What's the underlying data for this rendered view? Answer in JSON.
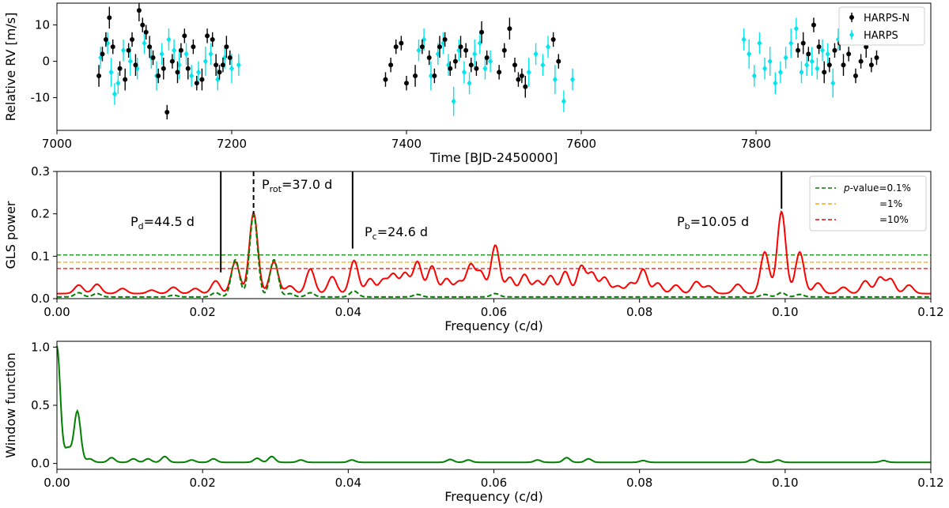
{
  "chart_data": [
    {
      "type": "scatter",
      "xlabel": "Time [BJD-2450000]",
      "ylabel": "Relative RV [m/s]",
      "xlim": [
        7000,
        8000
      ],
      "ylim": [
        -19,
        16
      ],
      "xticks": [
        7000,
        7200,
        7400,
        7600,
        7800
      ],
      "yticks": [
        10,
        0,
        -10
      ],
      "legend_position": "top-right",
      "series": [
        {
          "name": "HARPS-N",
          "color": "#000000",
          "marker": "circle",
          "error_bars": true,
          "x": [
            7048,
            7052,
            7056,
            7060,
            7064,
            7072,
            7078,
            7082,
            7086,
            7090,
            7094,
            7098,
            7102,
            7106,
            7110,
            7116,
            7122,
            7126,
            7132,
            7138,
            7142,
            7146,
            7150,
            7156,
            7160,
            7166,
            7172,
            7178,
            7182,
            7186,
            7190,
            7194,
            7198,
            7376,
            7382,
            7388,
            7394,
            7400,
            7410,
            7418,
            7426,
            7432,
            7438,
            7444,
            7450,
            7456,
            7462,
            7468,
            7474,
            7480,
            7486,
            7492,
            7506,
            7512,
            7518,
            7524,
            7528,
            7532,
            7536,
            7568,
            7574,
            7848,
            7854,
            7860,
            7866,
            7872,
            7878,
            7884,
            7890,
            7896,
            7900,
            7906,
            7914,
            7920,
            7926,
            7932,
            7938
          ],
          "y": [
            -4,
            2,
            6,
            12,
            4,
            -2,
            -5,
            3,
            6,
            -1,
            14,
            10,
            8,
            4,
            1,
            -4,
            -2,
            -14,
            0,
            -3,
            3,
            7,
            -2,
            4,
            -6,
            -5,
            7,
            6,
            -1,
            -3,
            -1,
            4,
            1,
            -5,
            -1,
            4,
            5,
            -6,
            -4,
            4,
            1,
            -4,
            4,
            6,
            -2,
            0,
            4,
            3,
            -1,
            -2,
            8,
            1,
            -3,
            3,
            9,
            -1,
            -5,
            -4,
            -7,
            6,
            0,
            3,
            5,
            2,
            10,
            4,
            -3,
            -1,
            3,
            5,
            -1,
            2,
            -4,
            0,
            4,
            -1,
            1
          ],
          "err": [
            3,
            2,
            2,
            3,
            2,
            2,
            3,
            2,
            2,
            3,
            3,
            2,
            2,
            3,
            2,
            2,
            3,
            2,
            2,
            3,
            2,
            2,
            3,
            2,
            2,
            3,
            2,
            2,
            3,
            2,
            2,
            3,
            2,
            2,
            2,
            2,
            2,
            2,
            3,
            2,
            2,
            2,
            3,
            2,
            2,
            2,
            3,
            2,
            2,
            2,
            3,
            2,
            2,
            2,
            3,
            2,
            2,
            2,
            3,
            2,
            2,
            2,
            3,
            2,
            2,
            2,
            3,
            2,
            2,
            2,
            3,
            2,
            2,
            2,
            3,
            2,
            2
          ]
        },
        {
          "name": "HARPS",
          "color": "#00e5ee",
          "marker": "diamond",
          "error_bars": true,
          "x": [
            7050,
            7058,
            7062,
            7066,
            7070,
            7076,
            7084,
            7092,
            7100,
            7108,
            7114,
            7120,
            7128,
            7134,
            7140,
            7148,
            7154,
            7162,
            7170,
            7176,
            7184,
            7192,
            7200,
            7208,
            7414,
            7420,
            7428,
            7436,
            7442,
            7448,
            7454,
            7460,
            7466,
            7472,
            7478,
            7484,
            7490,
            7496,
            7540,
            7548,
            7556,
            7562,
            7570,
            7580,
            7590,
            7786,
            7792,
            7798,
            7804,
            7810,
            7816,
            7822,
            7828,
            7834,
            7840,
            7846,
            7852,
            7858,
            7864,
            7870,
            7876,
            7882,
            7888,
            7894
          ],
          "y": [
            1,
            5,
            -3,
            -9,
            -6,
            3,
            0,
            -2,
            5,
            1,
            -4,
            2,
            6,
            3,
            -1,
            2,
            -4,
            -3,
            0,
            2,
            -5,
            1,
            -2,
            -1,
            3,
            6,
            -4,
            2,
            5,
            -1,
            -11,
            3,
            -3,
            -6,
            2,
            5,
            -2,
            0,
            -3,
            2,
            -1,
            4,
            -5,
            -11,
            -5,
            6,
            2,
            -4,
            5,
            -2,
            0,
            -6,
            -3,
            1,
            5,
            9,
            -3,
            -1,
            0,
            -2,
            3,
            2,
            -6,
            6
          ],
          "err": [
            3,
            3,
            4,
            3,
            3,
            3,
            4,
            3,
            3,
            3,
            4,
            3,
            3,
            3,
            4,
            3,
            3,
            3,
            4,
            3,
            3,
            3,
            4,
            3,
            3,
            3,
            4,
            3,
            3,
            3,
            4,
            3,
            3,
            3,
            4,
            3,
            3,
            3,
            4,
            3,
            3,
            3,
            4,
            3,
            3,
            3,
            4,
            3,
            3,
            3,
            4,
            3,
            3,
            3,
            4,
            3,
            3,
            3,
            4,
            3,
            3,
            3,
            4,
            3
          ]
        }
      ]
    },
    {
      "type": "line",
      "xlabel": "Frequency (c/d)",
      "ylabel": "GLS power",
      "xlim": [
        0,
        0.12
      ],
      "ylim": [
        0,
        0.3
      ],
      "xticks": [
        0.0,
        0.02,
        0.04,
        0.06,
        0.08,
        0.1,
        0.12
      ],
      "xtick_labels": [
        "0.00",
        "0.02",
        "0.04",
        "0.06",
        "0.08",
        "0.10",
        "0.12"
      ],
      "yticks": [
        0.0,
        0.1,
        0.2,
        0.3
      ],
      "ytick_labels": [
        "0.0",
        "0.1",
        "0.2",
        "0.3"
      ],
      "legend_position": "top-right",
      "fap_levels": [
        {
          "label_prefix": "p",
          "label": "-value=0.1%",
          "value": 0.103,
          "color": "#008000"
        },
        {
          "label_prefix": "",
          "label": "=1%",
          "value": 0.086,
          "color": "#ffa500"
        },
        {
          "label_prefix": "",
          "label": "=10%",
          "value": 0.071,
          "color": "#ff0000"
        }
      ],
      "annotations": [
        {
          "sym": "P",
          "sub": "d",
          "val": "=44.5 d",
          "freq": 0.0225,
          "line_top": 0.3,
          "line_bottom": 0.062,
          "style": "solid"
        },
        {
          "sym": "P",
          "sub": "rot",
          "val": "=37.0 d",
          "freq": 0.027,
          "line_top": 0.3,
          "line_bottom": 0.2,
          "style": "dashed"
        },
        {
          "sym": "P",
          "sub": "c",
          "val": "=24.6 d",
          "freq": 0.0406,
          "line_top": 0.3,
          "line_bottom": 0.118,
          "style": "solid"
        },
        {
          "sym": "P",
          "sub": "b",
          "val": "=10.05 d",
          "freq": 0.0995,
          "line_top": 0.3,
          "line_bottom": 0.212,
          "style": "solid"
        }
      ],
      "series": [
        {
          "name": "",
          "color": "#ff0000",
          "style": "solid",
          "base": 0.012,
          "peaks": [
            [
              0.003,
              0.02
            ],
            [
              0.0055,
              0.022
            ],
            [
              0.009,
              0.012
            ],
            [
              0.013,
              0.008
            ],
            [
              0.016,
              0.015
            ],
            [
              0.019,
              0.012
            ],
            [
              0.0218,
              0.03
            ],
            [
              0.0245,
              0.075
            ],
            [
              0.027,
              0.19
            ],
            [
              0.0298,
              0.075
            ],
            [
              0.032,
              0.018
            ],
            [
              0.0348,
              0.058
            ],
            [
              0.0378,
              0.04
            ],
            [
              0.0408,
              0.078
            ],
            [
              0.043,
              0.035
            ],
            [
              0.0448,
              0.032
            ],
            [
              0.0462,
              0.045
            ],
            [
              0.0478,
              0.048
            ],
            [
              0.0495,
              0.075
            ],
            [
              0.0515,
              0.065
            ],
            [
              0.0535,
              0.035
            ],
            [
              0.0552,
              0.028
            ],
            [
              0.0568,
              0.067
            ],
            [
              0.0582,
              0.05
            ],
            [
              0.0602,
              0.114
            ],
            [
              0.0622,
              0.038
            ],
            [
              0.0642,
              0.045
            ],
            [
              0.066,
              0.03
            ],
            [
              0.0678,
              0.042
            ],
            [
              0.0698,
              0.052
            ],
            [
              0.072,
              0.065
            ],
            [
              0.0735,
              0.048
            ],
            [
              0.0752,
              0.038
            ],
            [
              0.077,
              0.018
            ],
            [
              0.0788,
              0.025
            ],
            [
              0.0805,
              0.057
            ],
            [
              0.0825,
              0.025
            ],
            [
              0.085,
              0.02
            ],
            [
              0.0878,
              0.028
            ],
            [
              0.0895,
              0.018
            ],
            [
              0.0935,
              0.022
            ],
            [
              0.0972,
              0.098
            ],
            [
              0.0995,
              0.193
            ],
            [
              0.102,
              0.098
            ],
            [
              0.1045,
              0.025
            ],
            [
              0.108,
              0.015
            ],
            [
              0.111,
              0.03
            ],
            [
              0.113,
              0.038
            ],
            [
              0.1145,
              0.034
            ],
            [
              0.117,
              0.02
            ]
          ],
          "width": 0.00058
        },
        {
          "name": "",
          "color": "#008000",
          "style": "dashed",
          "base": 0.004,
          "peaks": [
            [
              0.003,
              0.01
            ],
            [
              0.0055,
              0.008
            ],
            [
              0.016,
              0.004
            ],
            [
              0.0218,
              0.01
            ],
            [
              0.0245,
              0.088
            ],
            [
              0.027,
              0.193
            ],
            [
              0.0298,
              0.088
            ],
            [
              0.032,
              0.008
            ],
            [
              0.0348,
              0.01
            ],
            [
              0.0408,
              0.014
            ],
            [
              0.0495,
              0.006
            ],
            [
              0.0602,
              0.008
            ],
            [
              0.0972,
              0.006
            ],
            [
              0.0995,
              0.01
            ],
            [
              0.102,
              0.006
            ]
          ],
          "width": 0.00055
        }
      ]
    },
    {
      "type": "line",
      "xlabel": "Frequency (c/d)",
      "ylabel": "Window function",
      "xlim": [
        0,
        0.12
      ],
      "ylim": [
        -0.05,
        1.05
      ],
      "xticks": [
        0.0,
        0.02,
        0.04,
        0.06,
        0.08,
        0.1,
        0.12
      ],
      "xtick_labels": [
        "0.00",
        "0.02",
        "0.04",
        "0.06",
        "0.08",
        "0.10",
        "0.12"
      ],
      "yticks": [
        0.0,
        0.5,
        1.0
      ],
      "ytick_labels": [
        "0.0",
        "0.5",
        "1.0"
      ],
      "series": [
        {
          "name": "",
          "color": "#008000",
          "style": "solid",
          "base": 0.01,
          "peaks": [
            [
              0.0,
              1.0
            ],
            [
              0.0015,
              0.12
            ],
            [
              0.0028,
              0.44
            ],
            [
              0.0045,
              0.03
            ],
            [
              0.0075,
              0.04
            ],
            [
              0.0105,
              0.03
            ],
            [
              0.0125,
              0.03
            ],
            [
              0.0148,
              0.05
            ],
            [
              0.0185,
              0.02
            ],
            [
              0.0215,
              0.03
            ],
            [
              0.0275,
              0.035
            ],
            [
              0.0295,
              0.05
            ],
            [
              0.0335,
              0.02
            ],
            [
              0.0405,
              0.02
            ],
            [
              0.054,
              0.025
            ],
            [
              0.0565,
              0.02
            ],
            [
              0.066,
              0.02
            ],
            [
              0.07,
              0.04
            ],
            [
              0.073,
              0.03
            ],
            [
              0.0805,
              0.015
            ],
            [
              0.0955,
              0.025
            ],
            [
              0.099,
              0.02
            ],
            [
              0.1135,
              0.015
            ]
          ],
          "width": 0.00045
        }
      ]
    }
  ]
}
